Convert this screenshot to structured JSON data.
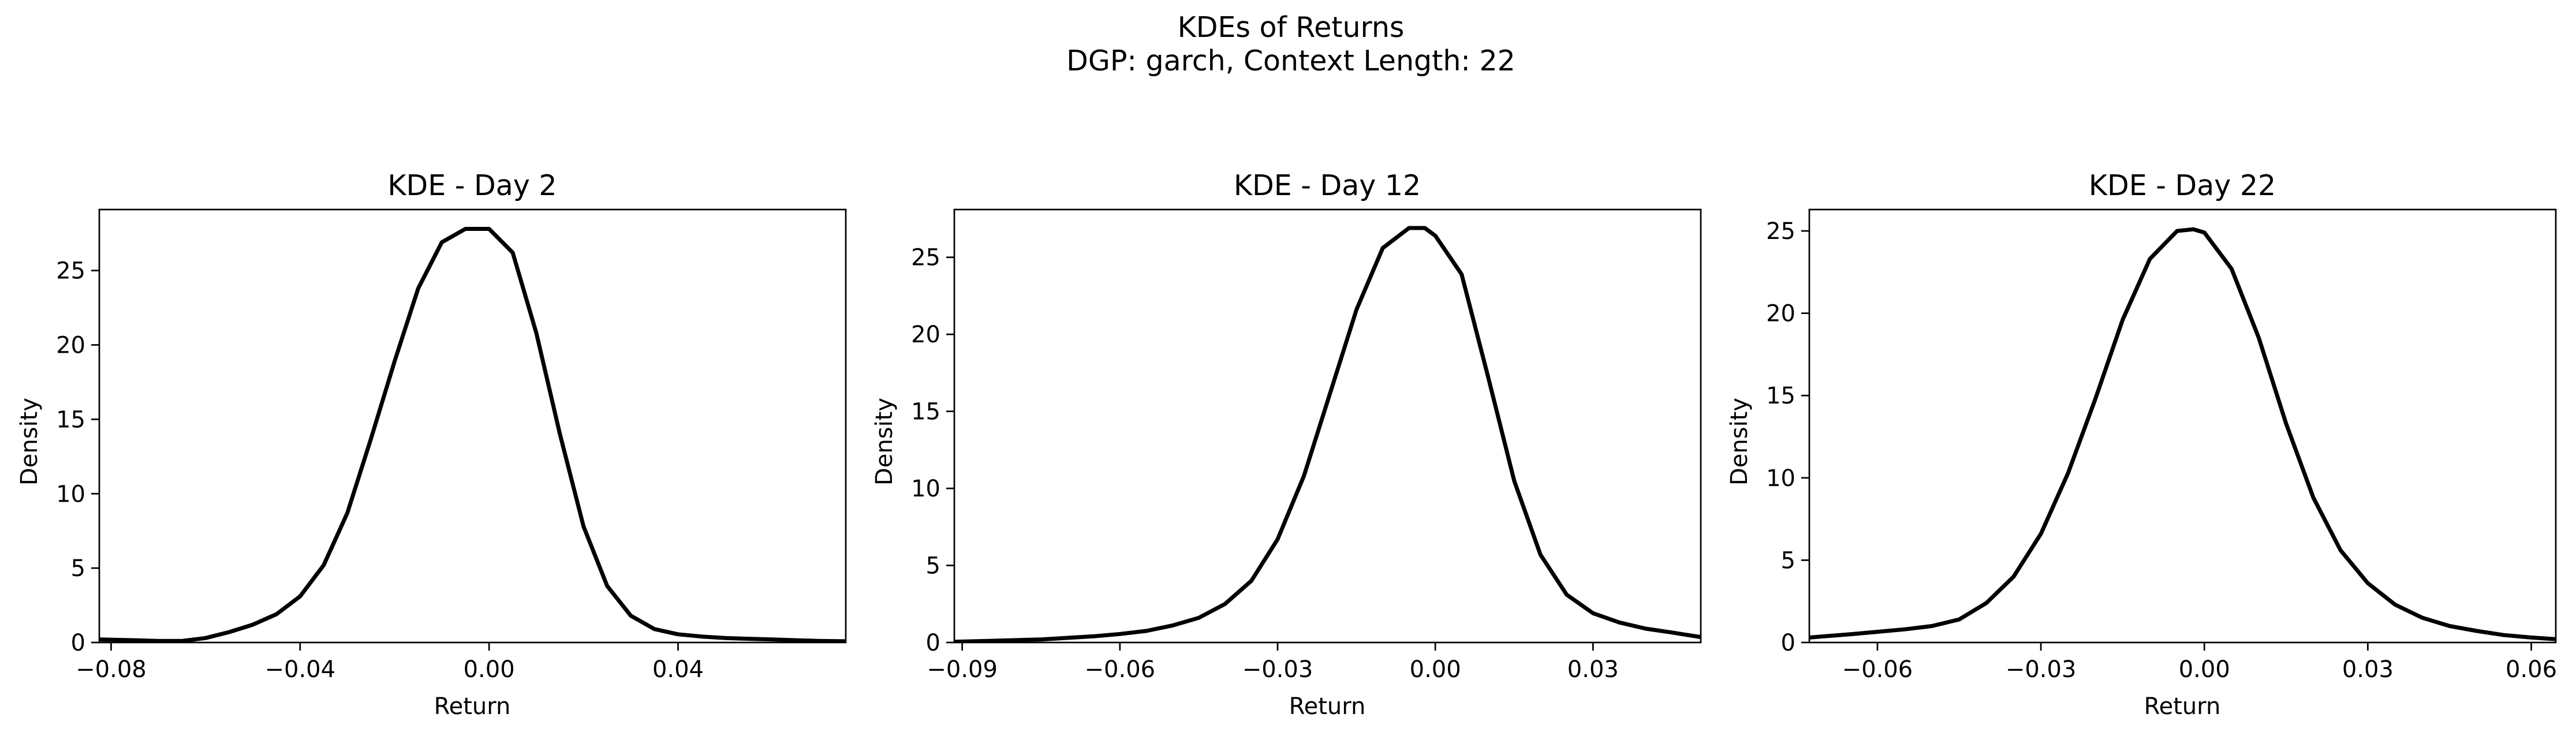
{
  "figure": {
    "title_line1": "KDEs of Returns",
    "title_line2": "DGP: garch, Context Length: 22"
  },
  "colors": {
    "line": "#000000",
    "background": "#ffffff"
  },
  "chart_data": [
    {
      "type": "line",
      "title": "KDE - Day 2",
      "xlabel": "Return",
      "ylabel": "Density",
      "xlim": [
        -0.0825,
        0.0755
      ],
      "ylim": [
        0,
        29.1
      ],
      "xticks": [
        -0.08,
        -0.04,
        0.0,
        0.04
      ],
      "xtick_labels": [
        "−0.08",
        "−0.04",
        "0.00",
        "0.04"
      ],
      "yticks": [
        0,
        5,
        10,
        15,
        20,
        25
      ],
      "ytick_labels": [
        "0",
        "5",
        "10",
        "15",
        "20",
        "25"
      ],
      "grid": false,
      "legend": "none",
      "series": [
        {
          "x": [
            -0.0825,
            -0.075,
            -0.07,
            -0.065,
            -0.06,
            -0.055,
            -0.05,
            -0.045,
            -0.04,
            -0.035,
            -0.03,
            -0.025,
            -0.02,
            -0.015,
            -0.01,
            -0.005,
            0.0,
            0.005,
            0.01,
            0.015,
            0.02,
            0.025,
            0.03,
            0.035,
            0.04,
            0.045,
            0.05,
            0.055,
            0.06,
            0.065,
            0.07,
            0.0755
          ],
          "y": [
            0.2,
            0.15,
            0.1,
            0.1,
            0.3,
            0.7,
            1.2,
            1.9,
            3.1,
            5.2,
            8.7,
            13.7,
            18.9,
            23.8,
            26.9,
            27.8,
            27.8,
            26.2,
            20.8,
            14.0,
            7.8,
            3.8,
            1.8,
            0.9,
            0.55,
            0.4,
            0.3,
            0.25,
            0.2,
            0.15,
            0.1,
            0.08
          ]
        }
      ]
    },
    {
      "type": "line",
      "title": "KDE - Day 12",
      "xlabel": "Return",
      "ylabel": "Density",
      "xlim": [
        -0.0915,
        0.0505
      ],
      "ylim": [
        0,
        28.1
      ],
      "xticks": [
        -0.09,
        -0.06,
        -0.03,
        0.0,
        0.03
      ],
      "xtick_labels": [
        "−0.09",
        "−0.06",
        "−0.03",
        "0.00",
        "0.03"
      ],
      "yticks": [
        0,
        5,
        10,
        15,
        20,
        25
      ],
      "ytick_labels": [
        "0",
        "5",
        "10",
        "15",
        "20",
        "25"
      ],
      "grid": false,
      "legend": "none",
      "series": [
        {
          "x": [
            -0.0915,
            -0.085,
            -0.08,
            -0.075,
            -0.07,
            -0.065,
            -0.06,
            -0.055,
            -0.05,
            -0.045,
            -0.04,
            -0.035,
            -0.03,
            -0.025,
            -0.02,
            -0.015,
            -0.01,
            -0.005,
            -0.002,
            0.0,
            0.005,
            0.01,
            0.015,
            0.02,
            0.025,
            0.03,
            0.035,
            0.04,
            0.045,
            0.0505
          ],
          "y": [
            0.05,
            0.1,
            0.15,
            0.2,
            0.3,
            0.4,
            0.55,
            0.75,
            1.1,
            1.6,
            2.5,
            4.0,
            6.7,
            10.8,
            16.2,
            21.6,
            25.6,
            26.9,
            26.9,
            26.4,
            23.9,
            17.3,
            10.5,
            5.7,
            3.1,
            1.9,
            1.3,
            0.9,
            0.65,
            0.35
          ]
        }
      ]
    },
    {
      "type": "line",
      "title": "KDE - Day 22",
      "xlabel": "Return",
      "ylabel": "Density",
      "xlim": [
        -0.0725,
        0.0645
      ],
      "ylim": [
        0,
        26.3
      ],
      "xticks": [
        -0.06,
        -0.03,
        0.0,
        0.03,
        0.06
      ],
      "xtick_labels": [
        "−0.06",
        "−0.03",
        "0.00",
        "0.03",
        "0.06"
      ],
      "yticks": [
        0,
        5,
        10,
        15,
        20,
        25
      ],
      "ytick_labels": [
        "0",
        "5",
        "10",
        "15",
        "20",
        "25"
      ],
      "grid": false,
      "legend": "none",
      "series": [
        {
          "x": [
            -0.0725,
            -0.065,
            -0.06,
            -0.055,
            -0.05,
            -0.045,
            -0.04,
            -0.035,
            -0.03,
            -0.025,
            -0.02,
            -0.015,
            -0.01,
            -0.005,
            -0.002,
            0.0,
            0.005,
            0.01,
            0.015,
            0.02,
            0.025,
            0.03,
            0.035,
            0.04,
            0.045,
            0.05,
            0.055,
            0.06,
            0.0645
          ],
          "y": [
            0.3,
            0.5,
            0.65,
            0.8,
            1.0,
            1.4,
            2.4,
            4.0,
            6.6,
            10.3,
            14.8,
            19.6,
            23.3,
            25.0,
            25.1,
            24.9,
            22.7,
            18.5,
            13.3,
            8.8,
            5.6,
            3.6,
            2.3,
            1.5,
            1.0,
            0.7,
            0.45,
            0.3,
            0.2
          ]
        }
      ]
    }
  ]
}
